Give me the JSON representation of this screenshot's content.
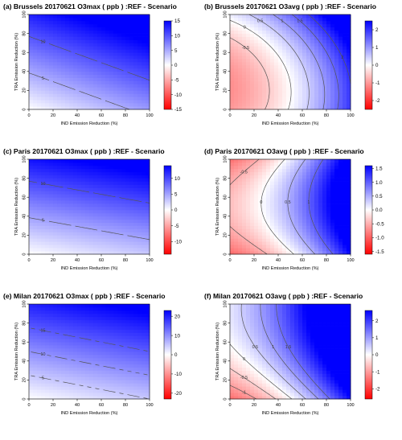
{
  "colors": {
    "negative": "#ff0000",
    "neutral": "#ffffff",
    "positive": "#0000ff",
    "contour": "#555555"
  },
  "chart_data": [
    {
      "id": "a",
      "panel_label": "(a)",
      "title": "Brussels 20170621 O3max ( ppb ) :REF - Scenario",
      "type": "heatmap",
      "xlabel": "IND Emission Reduction (%)",
      "ylabel": "TRA Emission Reduction (%)",
      "xlim": [
        0,
        100
      ],
      "ylim": [
        0,
        100
      ],
      "x_ticks": [
        "0",
        "20",
        "40",
        "60",
        "80",
        "100"
      ],
      "y_ticks": [
        "0",
        "20",
        "40",
        "60",
        "80",
        "100"
      ],
      "colorbar": {
        "range": [
          -15,
          15
        ],
        "ticks": [
          "15",
          "10",
          "5",
          "0",
          "-5",
          "-10",
          "-15"
        ]
      },
      "contour_levels": [
        "5",
        "10"
      ],
      "surface": {
        "c": 0,
        "x": 0.06,
        "y": 0.13,
        "xx": 0,
        "yy": 0,
        "xy": 0
      }
    },
    {
      "id": "b",
      "panel_label": "(b)",
      "title": "Brussels 20170621 O3avg ( ppb ) :REF - Scenario",
      "type": "heatmap",
      "xlabel": "IND Emission Reduction (%)",
      "ylabel": "TRA Emission Reduction (%)",
      "xlim": [
        0,
        100
      ],
      "ylim": [
        0,
        100
      ],
      "x_ticks": [
        "0",
        "20",
        "40",
        "60",
        "80",
        "100"
      ],
      "y_ticks": [
        "0",
        "20",
        "40",
        "60",
        "80",
        "100"
      ],
      "colorbar": {
        "range": [
          -2.5,
          2.5
        ],
        "ticks": [
          "2",
          "1",
          "0",
          "-1",
          "-2"
        ]
      },
      "contour_levels": [
        "-0.5",
        "0",
        "0.5",
        "1",
        "1.5",
        "2"
      ],
      "surface": {
        "c": -1.0,
        "x": 0.012,
        "y": -0.01,
        "xx": 0.00018,
        "yy": 0.00022,
        "xy": 4e-05
      }
    },
    {
      "id": "c",
      "panel_label": "(c)",
      "title": "Paris 20170621 O3max ( ppb ) :REF - Scenario",
      "type": "heatmap",
      "xlabel": "IND Emission Reduction (%)",
      "ylabel": "TRA Emission Reduction (%)",
      "xlim": [
        0,
        100
      ],
      "ylim": [
        0,
        100
      ],
      "x_ticks": [
        "0",
        "20",
        "40",
        "60",
        "80",
        "100"
      ],
      "y_ticks": [
        "0",
        "20",
        "40",
        "60",
        "80",
        "100"
      ],
      "colorbar": {
        "range": [
          -14,
          14
        ],
        "ticks": [
          "10",
          "5",
          "0",
          "-5",
          "-10"
        ]
      },
      "contour_levels": [
        "5",
        "10"
      ],
      "surface": {
        "c": 0,
        "x": 0.03,
        "y": 0.13,
        "xx": 0,
        "yy": 0,
        "xy": 0
      }
    },
    {
      "id": "d",
      "panel_label": "(d)",
      "title": "Paris 20170621 O3avg ( ppb ) :REF - Scenario",
      "type": "heatmap",
      "xlabel": "IND Emission Reduction (%)",
      "ylabel": "TRA Emission Reduction (%)",
      "xlim": [
        0,
        100
      ],
      "ylim": [
        0,
        100
      ],
      "x_ticks": [
        "0",
        "20",
        "40",
        "60",
        "80",
        "100"
      ],
      "y_ticks": [
        "0",
        "20",
        "40",
        "60",
        "80",
        "100"
      ],
      "colorbar": {
        "range": [
          -1.6,
          1.6
        ],
        "ticks": [
          "1.5",
          "1.0",
          "0.5",
          "0.0",
          "-0.5",
          "-1.0",
          "-1.5"
        ]
      },
      "contour_levels": [
        "-0.5",
        "0",
        "0.5",
        "1"
      ],
      "surface": {
        "c": -0.95,
        "x": 0.01,
        "y": 0.0215,
        "xx": 0.00015,
        "yy": -0.00021,
        "xy": 3e-05
      }
    },
    {
      "id": "e",
      "panel_label": "(e)",
      "title": "Milan 20170621 O3max ( ppb ) :REF - Scenario",
      "type": "heatmap",
      "xlabel": "IND Emission Reduction (%)",
      "ylabel": "TRA Emission Reduction (%)",
      "xlim": [
        0,
        100
      ],
      "ylim": [
        0,
        100
      ],
      "x_ticks": [
        "0",
        "20",
        "40",
        "60",
        "80",
        "100"
      ],
      "y_ticks": [
        "0",
        "20",
        "40",
        "60",
        "80",
        "100"
      ],
      "colorbar": {
        "range": [
          -23,
          23
        ],
        "ticks": [
          "20",
          "10",
          "0",
          "-10",
          "-20"
        ]
      },
      "contour_levels": [
        "5",
        "10",
        "15"
      ],
      "surface": {
        "c": 0,
        "x": 0.05,
        "y": 0.2,
        "xx": 0,
        "yy": 0,
        "xy": 0
      }
    },
    {
      "id": "f",
      "panel_label": "(f)",
      "title": "Milan 20170621 O3avg ( ppb ) :REF - Scenario",
      "type": "heatmap",
      "xlabel": "IND Emission Reduction (%)",
      "ylabel": "TRA Emission Reduction (%)",
      "xlim": [
        0,
        100
      ],
      "ylim": [
        0,
        100
      ],
      "x_ticks": [
        "0",
        "20",
        "40",
        "60",
        "80",
        "100"
      ],
      "y_ticks": [
        "0",
        "20",
        "40",
        "60",
        "80",
        "100"
      ],
      "colorbar": {
        "range": [
          -2.6,
          2.6
        ],
        "ticks": [
          "2",
          "1",
          "0",
          "-1",
          "-2"
        ]
      },
      "contour_levels": [
        "-1",
        "-0.5",
        "0",
        "0.5",
        "1",
        "1.5"
      ],
      "surface": {
        "c": -1.5,
        "x": 0.018,
        "y": 0.0375,
        "xx": 0.00022,
        "yy": -0.0002,
        "xy": 6e-05
      }
    }
  ]
}
